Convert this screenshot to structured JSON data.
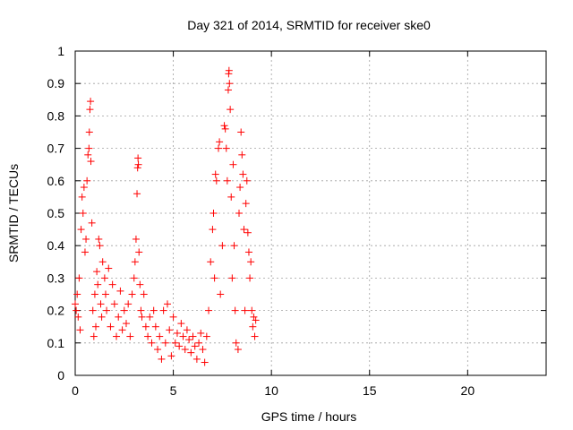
{
  "chart_data": {
    "type": "scatter",
    "title": "Day 321 of 2014, SRMTID for receiver ske0",
    "xlabel": "GPS time / hours",
    "ylabel": "SRMTID / TECUs",
    "xlim": [
      0,
      24
    ],
    "ylim": [
      0,
      1
    ],
    "xticks": [
      0,
      5,
      10,
      15,
      20
    ],
    "xtick_labels": [
      "0",
      "5",
      "10",
      "15",
      "20"
    ],
    "yticks": [
      0,
      0.1,
      0.2,
      0.3,
      0.4,
      0.5,
      0.6,
      0.7,
      0.8,
      0.9,
      1
    ],
    "ytick_labels": [
      "0",
      "0.1",
      "0.2",
      "0.3",
      "0.4",
      "0.5",
      "0.6",
      "0.7",
      "0.8",
      "0.9",
      "1"
    ],
    "grid": true,
    "marker": "+",
    "color": "#ff0000",
    "series": [
      {
        "name": "ske0",
        "points": [
          [
            0.0,
            0.22
          ],
          [
            0.05,
            0.2
          ],
          [
            0.1,
            0.25
          ],
          [
            0.15,
            0.18
          ],
          [
            0.2,
            0.3
          ],
          [
            0.25,
            0.14
          ],
          [
            0.3,
            0.45
          ],
          [
            0.35,
            0.55
          ],
          [
            0.4,
            0.5
          ],
          [
            0.45,
            0.58
          ],
          [
            0.5,
            0.38
          ],
          [
            0.55,
            0.42
          ],
          [
            0.6,
            0.6
          ],
          [
            0.65,
            0.68
          ],
          [
            0.7,
            0.7
          ],
          [
            0.72,
            0.75
          ],
          [
            0.75,
            0.82
          ],
          [
            0.78,
            0.845
          ],
          [
            0.8,
            0.66
          ],
          [
            0.85,
            0.47
          ],
          [
            0.9,
            0.2
          ],
          [
            0.95,
            0.12
          ],
          [
            1.0,
            0.25
          ],
          [
            1.05,
            0.15
          ],
          [
            1.1,
            0.32
          ],
          [
            1.15,
            0.28
          ],
          [
            1.2,
            0.42
          ],
          [
            1.25,
            0.4
          ],
          [
            1.3,
            0.22
          ],
          [
            1.35,
            0.18
          ],
          [
            1.4,
            0.35
          ],
          [
            1.5,
            0.3
          ],
          [
            1.55,
            0.25
          ],
          [
            1.6,
            0.2
          ],
          [
            1.7,
            0.33
          ],
          [
            1.8,
            0.15
          ],
          [
            1.9,
            0.28
          ],
          [
            2.0,
            0.22
          ],
          [
            2.1,
            0.12
          ],
          [
            2.2,
            0.18
          ],
          [
            2.3,
            0.26
          ],
          [
            2.4,
            0.14
          ],
          [
            2.5,
            0.2
          ],
          [
            2.6,
            0.16
          ],
          [
            2.7,
            0.22
          ],
          [
            2.8,
            0.12
          ],
          [
            2.9,
            0.25
          ],
          [
            3.0,
            0.3
          ],
          [
            3.05,
            0.35
          ],
          [
            3.1,
            0.42
          ],
          [
            3.15,
            0.56
          ],
          [
            3.18,
            0.64
          ],
          [
            3.2,
            0.67
          ],
          [
            3.22,
            0.65
          ],
          [
            3.25,
            0.38
          ],
          [
            3.3,
            0.28
          ],
          [
            3.35,
            0.2
          ],
          [
            3.4,
            0.18
          ],
          [
            3.5,
            0.25
          ],
          [
            3.6,
            0.15
          ],
          [
            3.7,
            0.12
          ],
          [
            3.8,
            0.18
          ],
          [
            3.9,
            0.1
          ],
          [
            4.0,
            0.2
          ],
          [
            4.1,
            0.15
          ],
          [
            4.2,
            0.08
          ],
          [
            4.3,
            0.12
          ],
          [
            4.4,
            0.05
          ],
          [
            4.5,
            0.2
          ],
          [
            4.6,
            0.1
          ],
          [
            4.7,
            0.22
          ],
          [
            4.8,
            0.14
          ],
          [
            4.9,
            0.06
          ],
          [
            5.0,
            0.18
          ],
          [
            5.1,
            0.1
          ],
          [
            5.2,
            0.13
          ],
          [
            5.3,
            0.09
          ],
          [
            5.4,
            0.16
          ],
          [
            5.5,
            0.12
          ],
          [
            5.6,
            0.08
          ],
          [
            5.7,
            0.14
          ],
          [
            5.8,
            0.11
          ],
          [
            5.9,
            0.07
          ],
          [
            6.0,
            0.12
          ],
          [
            6.1,
            0.09
          ],
          [
            6.2,
            0.05
          ],
          [
            6.3,
            0.1
          ],
          [
            6.4,
            0.13
          ],
          [
            6.5,
            0.08
          ],
          [
            6.6,
            0.04
          ],
          [
            6.7,
            0.12
          ],
          [
            6.8,
            0.2
          ],
          [
            6.9,
            0.35
          ],
          [
            7.0,
            0.45
          ],
          [
            7.05,
            0.5
          ],
          [
            7.1,
            0.3
          ],
          [
            7.15,
            0.62
          ],
          [
            7.2,
            0.6
          ],
          [
            7.3,
            0.7
          ],
          [
            7.35,
            0.72
          ],
          [
            7.4,
            0.25
          ],
          [
            7.5,
            0.4
          ],
          [
            7.6,
            0.77
          ],
          [
            7.65,
            0.76
          ],
          [
            7.7,
            0.7
          ],
          [
            7.75,
            0.6
          ],
          [
            7.8,
            0.88
          ],
          [
            7.82,
            0.93
          ],
          [
            7.84,
            0.94
          ],
          [
            7.86,
            0.9
          ],
          [
            7.9,
            0.82
          ],
          [
            7.95,
            0.55
          ],
          [
            8.0,
            0.3
          ],
          [
            8.05,
            0.65
          ],
          [
            8.1,
            0.4
          ],
          [
            8.15,
            0.2
          ],
          [
            8.2,
            0.1
          ],
          [
            8.3,
            0.08
          ],
          [
            8.35,
            0.5
          ],
          [
            8.4,
            0.58
          ],
          [
            8.45,
            0.75
          ],
          [
            8.5,
            0.68
          ],
          [
            8.55,
            0.62
          ],
          [
            8.6,
            0.45
          ],
          [
            8.65,
            0.2
          ],
          [
            8.7,
            0.53
          ],
          [
            8.75,
            0.6
          ],
          [
            8.8,
            0.44
          ],
          [
            8.85,
            0.38
          ],
          [
            8.9,
            0.3
          ],
          [
            8.95,
            0.35
          ],
          [
            9.0,
            0.2
          ],
          [
            9.05,
            0.15
          ],
          [
            9.1,
            0.18
          ],
          [
            9.15,
            0.12
          ],
          [
            9.2,
            0.17
          ]
        ]
      }
    ]
  }
}
